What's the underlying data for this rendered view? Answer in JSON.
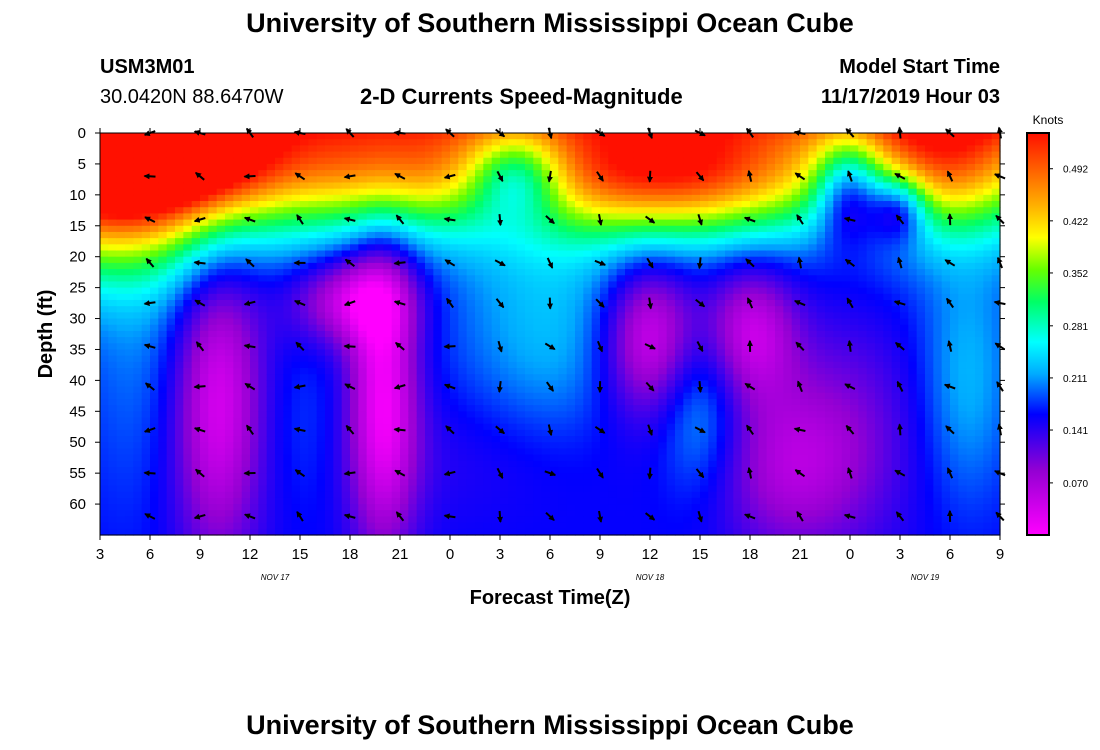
{
  "header": {
    "title": "University of Southern Mississippi Ocean Cube",
    "station_id": "USM3M01",
    "station_coords": "30.0420N 88.6470W",
    "plot_title": "2-D Currents Speed-Magnitude",
    "model_start_label": "Model Start Time",
    "model_start_value": "11/17/2019 Hour 03"
  },
  "footer": {
    "title": "University of Southern Mississippi Ocean Cube"
  },
  "chart_data": {
    "type": "heatmap",
    "title": "2-D Currents Speed-Magnitude",
    "xlabel": "Forecast Time(Z)",
    "ylabel": "Depth (ft)",
    "x_ticks": [
      "3",
      "6",
      "9",
      "12",
      "15",
      "18",
      "21",
      "0",
      "3",
      "6",
      "9",
      "12",
      "15",
      "18",
      "21",
      "0",
      "3",
      "6",
      "9"
    ],
    "x_tick_hours": [
      3,
      6,
      9,
      12,
      15,
      18,
      21,
      24,
      27,
      30,
      33,
      36,
      39,
      42,
      45,
      48,
      51,
      54,
      57
    ],
    "date_labels": [
      {
        "label": "NOV 17",
        "hour": 13.5
      },
      {
        "label": "NOV 18",
        "hour": 36
      },
      {
        "label": "NOV 19",
        "hour": 52.5
      }
    ],
    "y_ticks": [
      0,
      5,
      10,
      15,
      20,
      25,
      30,
      35,
      40,
      45,
      50,
      55,
      60
    ],
    "xlim_hours": [
      3,
      57
    ],
    "ylim_depth_ft": [
      0,
      65
    ],
    "colorbar": {
      "title": "Knots",
      "ticks": [
        "0.492",
        "0.422",
        "0.352",
        "0.281",
        "0.211",
        "0.141",
        "0.070"
      ],
      "tick_values": [
        0.492,
        0.422,
        0.352,
        0.281,
        0.211,
        0.141,
        0.07
      ],
      "range": [
        0.0,
        0.54
      ]
    },
    "arrow_depths_ft": [
      0,
      7,
      14,
      21,
      27.5,
      34.5,
      41,
      48,
      55,
      62
    ],
    "arrow_hours": [
      6,
      9,
      12,
      15,
      18,
      21,
      24,
      27,
      30,
      33,
      36,
      39,
      42,
      45,
      48,
      51,
      54,
      57
    ]
  }
}
